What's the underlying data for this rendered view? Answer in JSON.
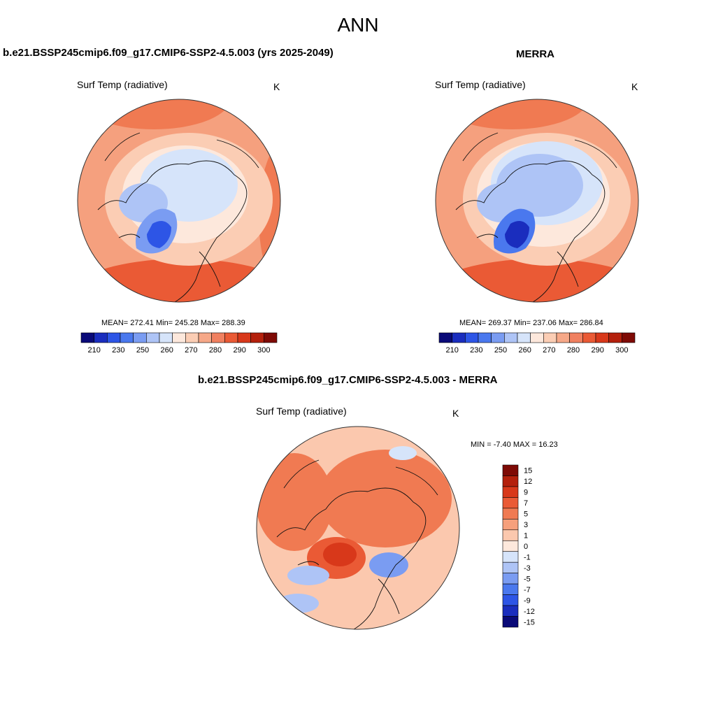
{
  "figure_title": "ANN",
  "panels": [
    {
      "title": "b.e21.BSSP245cmip6.f09_g17.CMIP6-SSP2-4.5.003 (yrs 2025-2049)",
      "variable": "Surf Temp (radiative)",
      "units": "K",
      "stats_text": "MEAN= 272.41  Min= 245.28  Max= 288.39",
      "stats": {
        "mean": 272.41,
        "min": 245.28,
        "max": 288.39
      }
    },
    {
      "title": "MERRA",
      "variable": "Surf Temp (radiative)",
      "units": "K",
      "stats_text": "MEAN= 269.37  Min= 237.06  Max= 286.84",
      "stats": {
        "mean": 269.37,
        "min": 237.06,
        "max": 286.84
      }
    },
    {
      "title": "b.e21.BSSP245cmip6.f09_g17.CMIP6-SSP2-4.5.003 - MERRA",
      "variable": "Surf Temp (radiative)",
      "units": "K",
      "stats_text": "MIN =  -7.40 MAX =  16.23",
      "stats": {
        "min": -7.4,
        "max": 16.23
      }
    }
  ],
  "colorbar_abs": {
    "tick_labels": [
      "210",
      "230",
      "250",
      "260",
      "270",
      "280",
      "290",
      "300"
    ],
    "colors": [
      "#0a0a78",
      "#1a2dbe",
      "#2d55e6",
      "#4a78ee",
      "#7a9cf2",
      "#aec4f6",
      "#d6e4fa",
      "#fde8dc",
      "#fbcdb4",
      "#f6a888",
      "#f08060",
      "#ea5a35",
      "#d8381a",
      "#b4200c",
      "#7e0a05"
    ]
  },
  "colorbar_diff": {
    "labels": [
      "15",
      "12",
      "9",
      "7",
      "5",
      "3",
      "1",
      "0",
      "-1",
      "-3",
      "-5",
      "-7",
      "-9",
      "-12",
      "-15"
    ],
    "colors": [
      "#7e0a05",
      "#b4200c",
      "#d8381a",
      "#ea5a35",
      "#f07a52",
      "#f6a07c",
      "#fbc8ae",
      "#fde8dc",
      "#d6e4fa",
      "#aec4f6",
      "#7a9cf2",
      "#4a78ee",
      "#2d55e6",
      "#1a2dbe",
      "#0a0a78"
    ]
  },
  "chart_data": [
    {
      "type": "heatmap",
      "projection": "north polar stereographic",
      "title": "b.e21.BSSP245cmip6.f09_g17.CMIP6-SSP2-4.5.003 (yrs 2025-2049)",
      "variable": "Surf Temp (radiative)",
      "units": "K",
      "contour_levels": [
        210,
        215,
        220,
        230,
        240,
        250,
        255,
        260,
        265,
        270,
        275,
        280,
        285,
        290,
        295,
        300
      ],
      "mean": 272.41,
      "min": 245.28,
      "max": 288.39
    },
    {
      "type": "heatmap",
      "projection": "north polar stereographic",
      "title": "MERRA",
      "variable": "Surf Temp (radiative)",
      "units": "K",
      "contour_levels": [
        210,
        215,
        220,
        230,
        240,
        250,
        255,
        260,
        265,
        270,
        275,
        280,
        285,
        290,
        295,
        300
      ],
      "mean": 269.37,
      "min": 237.06,
      "max": 286.84
    },
    {
      "type": "heatmap",
      "projection": "north polar stereographic",
      "title": "b.e21.BSSP245cmip6.f09_g17.CMIP6-SSP2-4.5.003 - MERRA",
      "variable": "Surf Temp (radiative)",
      "units": "K",
      "contour_levels": [
        -15,
        -12,
        -9,
        -7,
        -5,
        -3,
        -1,
        0,
        1,
        3,
        5,
        7,
        9,
        12,
        15
      ],
      "min": -7.4,
      "max": 16.23
    }
  ]
}
